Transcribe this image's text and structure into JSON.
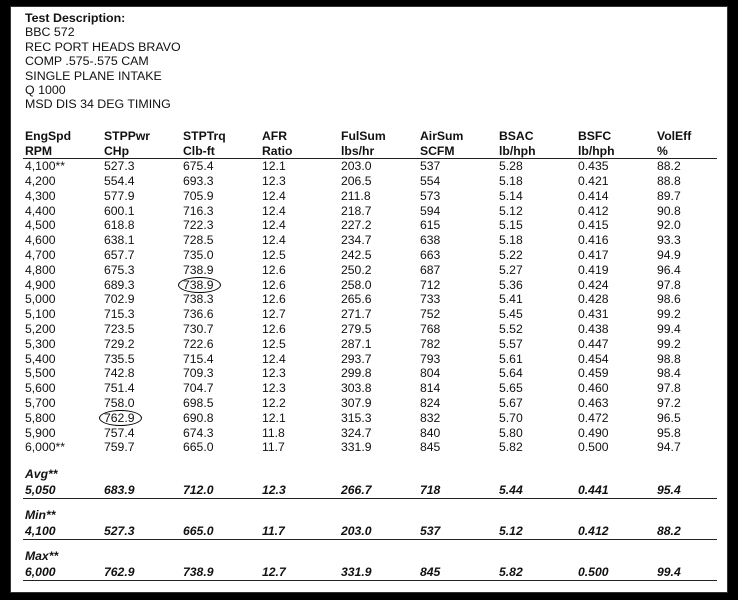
{
  "description": {
    "title": "Test Description:",
    "lines": [
      "BBC 572",
      "REC PORT HEADS BRAVO",
      "COMP .575-.575 CAM",
      "SINGLE PLANE INTAKE",
      "Q 1000",
      "MSD DIS 34 DEG TIMING"
    ]
  },
  "headers": {
    "top": [
      "EngSpd",
      "STPPwr",
      "STPTrq",
      "AFR",
      "FulSum",
      "AirSum",
      "BSAC",
      "BSFC",
      "VolEff"
    ],
    "units": [
      "RPM",
      "CHp",
      "Clb-ft",
      "Ratio",
      "lbs/hr",
      "SCFM",
      "lb/hph",
      "lb/hph",
      "%"
    ]
  },
  "rows": [
    [
      "4,100**",
      "527.3",
      "675.4",
      "12.1",
      "203.0",
      "537",
      "5.28",
      "0.435",
      "88.2"
    ],
    [
      "4,200",
      "554.4",
      "693.3",
      "12.3",
      "206.5",
      "554",
      "5.18",
      "0.421",
      "88.8"
    ],
    [
      "4,300",
      "577.9",
      "705.9",
      "12.4",
      "211.8",
      "573",
      "5.14",
      "0.414",
      "89.7"
    ],
    [
      "4,400",
      "600.1",
      "716.3",
      "12.4",
      "218.7",
      "594",
      "5.12",
      "0.412",
      "90.8"
    ],
    [
      "4,500",
      "618.8",
      "722.3",
      "12.4",
      "227.2",
      "615",
      "5.15",
      "0.415",
      "92.0"
    ],
    [
      "4,600",
      "638.1",
      "728.5",
      "12.4",
      "234.7",
      "638",
      "5.18",
      "0.416",
      "93.3"
    ],
    [
      "4,700",
      "657.7",
      "735.0",
      "12.5",
      "242.5",
      "663",
      "5.22",
      "0.417",
      "94.9"
    ],
    [
      "4,800",
      "675.3",
      "738.9",
      "12.6",
      "250.2",
      "687",
      "5.27",
      "0.419",
      "96.4"
    ],
    [
      "4,900",
      "689.3",
      "738.9",
      "12.6",
      "258.0",
      "712",
      "5.36",
      "0.424",
      "97.8"
    ],
    [
      "5,000",
      "702.9",
      "738.3",
      "12.6",
      "265.6",
      "733",
      "5.41",
      "0.428",
      "98.6"
    ],
    [
      "5,100",
      "715.3",
      "736.6",
      "12.7",
      "271.7",
      "752",
      "5.45",
      "0.431",
      "99.2"
    ],
    [
      "5,200",
      "723.5",
      "730.7",
      "12.6",
      "279.5",
      "768",
      "5.52",
      "0.438",
      "99.4"
    ],
    [
      "5,300",
      "729.2",
      "722.6",
      "12.5",
      "287.1",
      "782",
      "5.57",
      "0.447",
      "99.2"
    ],
    [
      "5,400",
      "735.5",
      "715.4",
      "12.4",
      "293.7",
      "793",
      "5.61",
      "0.454",
      "98.8"
    ],
    [
      "5,500",
      "742.8",
      "709.3",
      "12.3",
      "299.8",
      "804",
      "5.64",
      "0.459",
      "98.4"
    ],
    [
      "5,600",
      "751.4",
      "704.7",
      "12.3",
      "303.8",
      "814",
      "5.65",
      "0.460",
      "97.8"
    ],
    [
      "5,700",
      "758.0",
      "698.5",
      "12.2",
      "307.9",
      "824",
      "5.67",
      "0.463",
      "97.2"
    ],
    [
      "5,800",
      "762.9",
      "690.8",
      "12.1",
      "315.3",
      "832",
      "5.70",
      "0.472",
      "96.5"
    ],
    [
      "5,900",
      "757.4",
      "674.3",
      "11.8",
      "324.7",
      "840",
      "5.80",
      "0.490",
      "95.8"
    ],
    [
      "6,000**",
      "759.7",
      "665.0",
      "11.7",
      "331.9",
      "845",
      "5.82",
      "0.500",
      "94.7"
    ]
  ],
  "summaries": [
    {
      "label": "Avg**",
      "values": [
        "5,050",
        "683.9",
        "712.0",
        "12.3",
        "266.7",
        "718",
        "5.44",
        "0.441",
        "95.4"
      ]
    },
    {
      "label": "Min**",
      "values": [
        "4,100",
        "527.3",
        "665.0",
        "11.7",
        "203.0",
        "537",
        "5.12",
        "0.412",
        "88.2"
      ]
    },
    {
      "label": "Max**",
      "values": [
        "6,000",
        "762.9",
        "738.9",
        "12.7",
        "331.9",
        "845",
        "5.82",
        "0.500",
        "99.4"
      ]
    }
  ],
  "circled_cells": [
    {
      "row": 8,
      "col": 2
    },
    {
      "row": 17,
      "col": 1
    }
  ]
}
